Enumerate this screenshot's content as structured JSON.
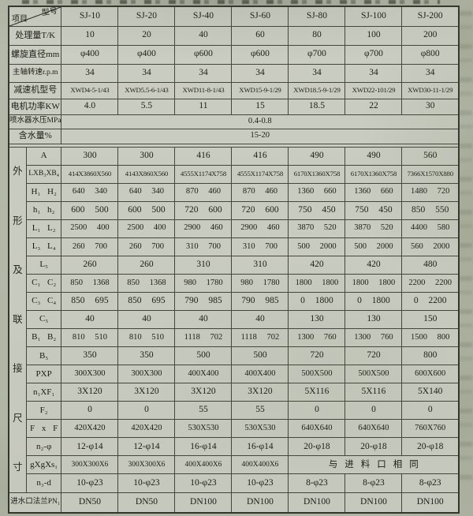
{
  "table": {
    "corner": {
      "top_right": "型号",
      "bottom_left": "项目"
    },
    "columns": [
      "SJ-10",
      "SJ-20",
      "SJ-40",
      "SJ-60",
      "SJ-80",
      "SJ-100",
      "SJ-200"
    ],
    "top_rows": [
      {
        "label": "处理量T/K",
        "values": [
          "10",
          "20",
          "40",
          "60",
          "80",
          "100",
          "200"
        ]
      },
      {
        "label": "螺旋直径mm",
        "values": [
          "φ400",
          "φ400",
          "φ600",
          "φ600",
          "φ700",
          "φ700",
          "φ800"
        ]
      },
      {
        "label": "主轴转速r.p.m",
        "values": [
          "34",
          "34",
          "34",
          "34",
          "34",
          "34",
          "34"
        ]
      },
      {
        "label": "减速机型号",
        "values": [
          "XWD4-5-1/43",
          "XWD5.5-6-1/43",
          "XWD11-8-1/43",
          "XWD15-9-1/29",
          "XWD18.5-9-1/29",
          "XWD22-101/29",
          "XWD30-11-1/29"
        ]
      },
      {
        "label": "电机功率KW",
        "values": [
          "4.0",
          "5.5",
          "11",
          "15",
          "18.5",
          "22",
          "30"
        ]
      },
      {
        "label": "喷水器水压MPa",
        "merged": "0.4-0.8"
      },
      {
        "label": "含水量%",
        "merged": "15-20"
      }
    ],
    "side_label": "外形及联接尺寸",
    "dim_rows": [
      {
        "label": "A",
        "values": [
          "300",
          "300",
          "416",
          "416",
          "490",
          "490",
          "560"
        ]
      },
      {
        "label": "LXB₃XB₄",
        "values": [
          "414X3860X560",
          "4143X860X560",
          "4555X1174X758",
          "4555X1174X758",
          "6170X1360X758",
          "6170X1360X758",
          "7366X1570X880"
        ]
      },
      {
        "label": "H₁ H₂",
        "values": [
          "640 340",
          "640 340",
          "870 460",
          "870 460",
          "1360 660",
          "1360 660",
          "1480 720"
        ]
      },
      {
        "label": "h₁ h₂",
        "values": [
          "600 500",
          "600 500",
          "720 600",
          "720 600",
          "750 450",
          "750 450",
          "850 550"
        ]
      },
      {
        "label": "L₁ L₂",
        "values": [
          "2500 400",
          "2500 400",
          "2900 460",
          "2900 460",
          "3870 520",
          "3870 520",
          "4400 580"
        ]
      },
      {
        "label": "L₃ L₄",
        "values": [
          "260 700",
          "260 700",
          "310 700",
          "310 700",
          "500 2000",
          "500 2000",
          "560 2000"
        ]
      },
      {
        "label": "L₅",
        "values": [
          "260",
          "260",
          "310",
          "310",
          "420",
          "420",
          "480"
        ]
      },
      {
        "label": "C₁ C₂",
        "values": [
          "850 1368",
          "850 1368",
          "980 1780",
          "980 1780",
          "1800 1800",
          "1800 1800",
          "2200 2200"
        ]
      },
      {
        "label": "C₃ C₄",
        "values": [
          "850 695",
          "850 695",
          "790 985",
          "790 985",
          "0 1800",
          "0 1800",
          "0 2200"
        ]
      },
      {
        "label": "C₅",
        "values": [
          "40",
          "40",
          "40",
          "40",
          "130",
          "130",
          "150"
        ]
      },
      {
        "label": "B₁ B₂",
        "values": [
          "810 510",
          "810 510",
          "1118 702",
          "1118 702",
          "1300 760",
          "1300 760",
          "1500 800"
        ]
      },
      {
        "label": "B₅",
        "values": [
          "350",
          "350",
          "500",
          "500",
          "720",
          "720",
          "800"
        ]
      },
      {
        "label": "PXP",
        "values": [
          "300X300",
          "300X300",
          "400X400",
          "400X400",
          "500X500",
          "500X500",
          "600X600"
        ]
      },
      {
        "label": "n₁XF₁",
        "values": [
          "3X120",
          "3X120",
          "3X120",
          "3X120",
          "5X116",
          "5X116",
          "5X140"
        ]
      },
      {
        "label": "F₂",
        "values": [
          "0",
          "0",
          "55",
          "55",
          "0",
          "0",
          "0"
        ]
      },
      {
        "label": "F x F",
        "values": [
          "420X420",
          "420X420",
          "530X530",
          "530X530",
          "640X640",
          "640X640",
          "760X760"
        ]
      },
      {
        "label": "n₂-φ",
        "values": [
          "12-φ14",
          "12-φ14",
          "16-φ14",
          "16-φ14",
          "20-φ18",
          "20-φ18",
          "20-φ18"
        ]
      },
      {
        "label": "gXgXs₁",
        "values": [
          "300X300X6",
          "300X300X6",
          "400X400X6",
          "400X400X6"
        ],
        "merged_tail": {
          "span": 3,
          "text": "与进料口相同"
        }
      },
      {
        "label": "n₃-d",
        "values": [
          "10-φ23",
          "10-φ23",
          "10-φ23",
          "10-φ23",
          "8-φ23",
          "8-φ23",
          "8-φ23"
        ]
      }
    ],
    "bottom_row": {
      "label": "进水口法兰PN₁",
      "values": [
        "DN50",
        "DN50",
        "DN100",
        "DN100",
        "DN100",
        "DN100",
        "DN100"
      ]
    }
  }
}
